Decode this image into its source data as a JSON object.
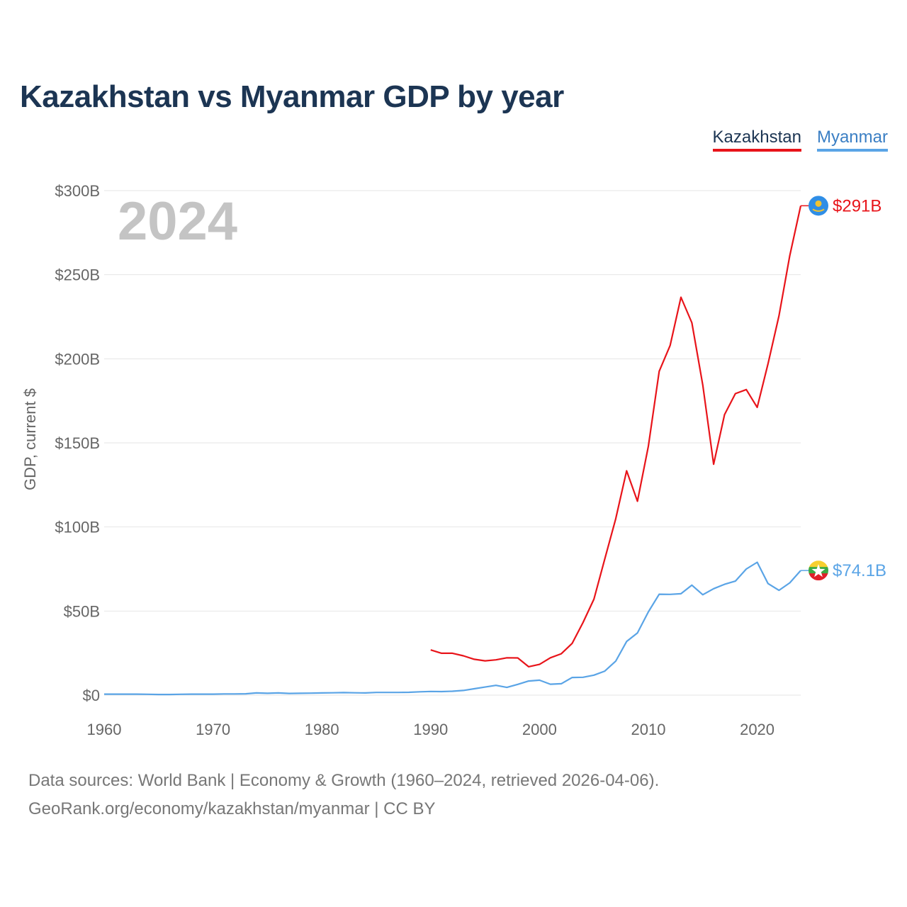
{
  "title": "Kazakhstan vs Myanmar GDP by year",
  "legend": {
    "kazakhstan": "Kazakhstan",
    "myanmar": "Myanmar"
  },
  "source": {
    "line1": "Data sources: World Bank | Economy & Growth (1960–2024, retrieved 2026-04-06).",
    "line2": "GeoRank.org/economy/kazakhstan/myanmar | CC BY"
  },
  "colors": {
    "kazakhstan": "#e8141a",
    "myanmar": "#5aa4e6",
    "grid": "#e6e6e6"
  },
  "chart_data": {
    "type": "line",
    "title": "Kazakhstan vs Myanmar GDP by year",
    "xlabel": "",
    "ylabel": "GDP, current $",
    "year_label": "2024",
    "xlim": [
      1960,
      2024
    ],
    "ylim": [
      0,
      300
    ],
    "x_ticks": [
      1960,
      1970,
      1980,
      1990,
      2000,
      2010,
      2020
    ],
    "x_tick_labels": [
      "1960",
      "1970",
      "1980",
      "1990",
      "2000",
      "2010",
      "2020"
    ],
    "y_ticks": [
      0,
      50,
      100,
      150,
      200,
      250,
      300
    ],
    "y_tick_labels": [
      "$0",
      "$50B",
      "$100B",
      "$150B",
      "$200B",
      "$250B",
      "$300B"
    ],
    "units": "billions of current US$",
    "series": [
      {
        "name": "Kazakhstan",
        "color": "#e8141a",
        "end_label": "$291B",
        "x": [
          1990,
          1991,
          1992,
          1993,
          1994,
          1995,
          1996,
          1997,
          1998,
          1999,
          2000,
          2001,
          2002,
          2003,
          2004,
          2005,
          2006,
          2007,
          2008,
          2009,
          2010,
          2011,
          2012,
          2013,
          2014,
          2015,
          2016,
          2017,
          2018,
          2019,
          2020,
          2021,
          2022,
          2023,
          2024
        ],
        "values": [
          26.9,
          24.9,
          24.9,
          23.4,
          21.3,
          20.4,
          21.0,
          22.2,
          22.1,
          16.9,
          18.3,
          22.2,
          24.6,
          30.8,
          43.2,
          57.1,
          81.0,
          104.8,
          133.4,
          115.3,
          148.0,
          192.6,
          207.9,
          236.6,
          221.4,
          184.4,
          137.3,
          166.8,
          179.3,
          181.7,
          171.1,
          197.1,
          225.5,
          261.4,
          291.0
        ]
      },
      {
        "name": "Myanmar",
        "color": "#5aa4e6",
        "end_label": "$74.1B",
        "x": [
          1960,
          1961,
          1962,
          1963,
          1964,
          1965,
          1966,
          1967,
          1968,
          1969,
          1970,
          1971,
          1972,
          1973,
          1974,
          1975,
          1976,
          1977,
          1978,
          1979,
          1980,
          1981,
          1982,
          1983,
          1984,
          1985,
          1986,
          1987,
          1988,
          1989,
          1990,
          1991,
          1992,
          1993,
          1994,
          1995,
          1996,
          1997,
          1998,
          1999,
          2000,
          2001,
          2002,
          2003,
          2004,
          2005,
          2006,
          2007,
          2008,
          2009,
          2010,
          2011,
          2012,
          2013,
          2014,
          2015,
          2016,
          2017,
          2018,
          2019,
          2020,
          2021,
          2022,
          2023,
          2024
        ],
        "values": [
          0.6,
          0.6,
          0.6,
          0.6,
          0.5,
          0.4,
          0.4,
          0.5,
          0.6,
          0.6,
          0.6,
          0.7,
          0.7,
          0.8,
          1.3,
          1.1,
          1.3,
          1.0,
          1.1,
          1.2,
          1.3,
          1.4,
          1.5,
          1.4,
          1.3,
          1.6,
          1.6,
          1.6,
          1.7,
          2.0,
          2.2,
          2.1,
          2.3,
          2.8,
          3.8,
          4.8,
          5.8,
          4.6,
          6.4,
          8.4,
          8.9,
          6.5,
          6.8,
          10.5,
          10.6,
          11.9,
          14.3,
          20.2,
          31.9,
          37.0,
          49.5,
          60.0,
          59.9,
          60.3,
          65.4,
          59.7,
          63.3,
          65.9,
          67.8,
          75.0,
          79.0,
          66.3,
          62.3,
          66.8,
          74.1
        ]
      }
    ]
  }
}
